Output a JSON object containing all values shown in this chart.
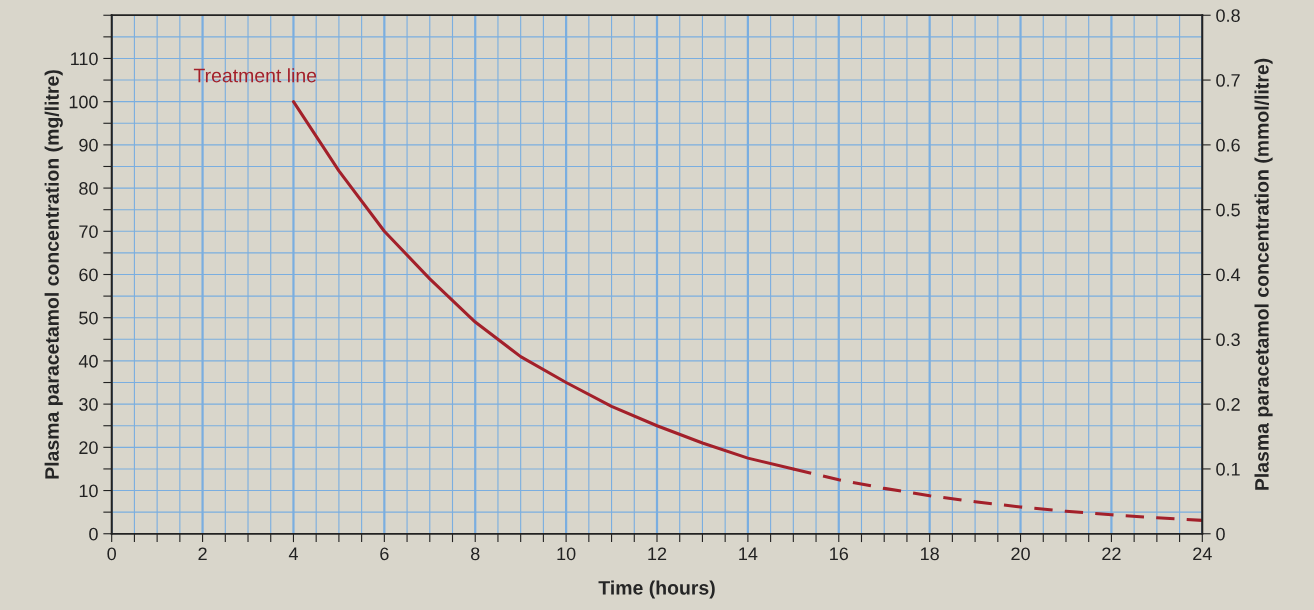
{
  "chart_data": {
    "type": "line",
    "xlabel": "Time (hours)",
    "ylabel": "Plasma paracetamol concentration (mg/litre)",
    "y2label": "Plasma paracetamol concentration (mmol/litre)",
    "series": [
      {
        "name": "Treatment line",
        "color": "#a3202a",
        "line_style": "solid",
        "x": [
          4,
          5,
          6,
          7,
          8,
          9,
          10,
          11,
          12,
          13,
          14,
          15
        ],
        "values": [
          100,
          84,
          70,
          59,
          49,
          41,
          35,
          29.5,
          25,
          21,
          17.5,
          15
        ]
      },
      {
        "color": "#a3202a",
        "line_style": "dashed",
        "x": [
          15,
          16,
          17,
          18,
          19,
          20,
          21,
          22,
          23,
          24
        ],
        "values": [
          15,
          12.5,
          10.5,
          8.8,
          7.4,
          6.2,
          5.2,
          4.4,
          3.7,
          3.1
        ]
      }
    ],
    "xlim": [
      0,
      24
    ],
    "ylim": [
      0,
      120
    ],
    "y2lim": [
      0,
      0.8
    ],
    "xticks": [
      0,
      {
        "value": 0.5,
        "label": null
      },
      {
        "value": 1,
        "label": null
      },
      {
        "value": 1.5,
        "label": null
      },
      2,
      {
        "value": 2.5,
        "label": null
      },
      {
        "value": 3,
        "label": null
      },
      {
        "value": 3.5,
        "label": null
      },
      4,
      {
        "value": 4.5,
        "label": null
      },
      {
        "value": 5,
        "label": null
      },
      {
        "value": 5.5,
        "label": null
      },
      6,
      {
        "value": 6.5,
        "label": null
      },
      {
        "value": 7,
        "label": null
      },
      {
        "value": 7.5,
        "label": null
      },
      8,
      {
        "value": 8.5,
        "label": null
      },
      {
        "value": 9,
        "label": null
      },
      {
        "value": 9.5,
        "label": null
      },
      10,
      {
        "value": 10.5,
        "label": null
      },
      {
        "value": 11,
        "label": null
      },
      {
        "value": 11.5,
        "label": null
      },
      12,
      {
        "value": 12.5,
        "label": null
      },
      {
        "value": 13,
        "label": null
      },
      {
        "value": 13.5,
        "label": null
      },
      14,
      {
        "value": 14.5,
        "label": null
      },
      {
        "value": 15,
        "label": null
      },
      {
        "value": 15.5,
        "label": null
      },
      16,
      {
        "value": 16.5,
        "label": null
      },
      {
        "value": 17,
        "label": null
      },
      {
        "value": 17.5,
        "label": null
      },
      18,
      {
        "value": 18.5,
        "label": null
      },
      {
        "value": 19,
        "label": null
      },
      {
        "value": 19.5,
        "label": null
      },
      20,
      {
        "value": 20.5,
        "label": null
      },
      {
        "value": 21,
        "label": null
      },
      {
        "value": 21.5,
        "label": null
      },
      22,
      {
        "value": 22.5,
        "label": null
      },
      {
        "value": 23,
        "label": null
      },
      {
        "value": 23.5,
        "label": null
      },
      24
    ],
    "yticks": [
      0,
      {
        "value": 5,
        "label": null
      },
      10,
      {
        "value": 15,
        "label": null
      },
      20,
      {
        "value": 25,
        "label": null
      },
      30,
      {
        "value": 35,
        "label": null
      },
      40,
      {
        "value": 45,
        "label": null
      },
      50,
      {
        "value": 55,
        "label": null
      },
      60,
      {
        "value": 65,
        "label": null
      },
      70,
      {
        "value": 75,
        "label": null
      },
      80,
      {
        "value": 85,
        "label": null
      },
      90,
      {
        "value": 95,
        "label": null
      },
      100,
      {
        "value": 105,
        "label": null
      },
      110,
      {
        "value": 115,
        "label": null
      },
      {
        "value": 120,
        "label": null
      }
    ],
    "y2ticks": [
      0,
      0.1,
      0.2,
      0.3,
      0.4,
      0.5,
      0.6,
      0.7,
      0.8
    ],
    "grid": true,
    "legend": false,
    "marker": "none"
  }
}
